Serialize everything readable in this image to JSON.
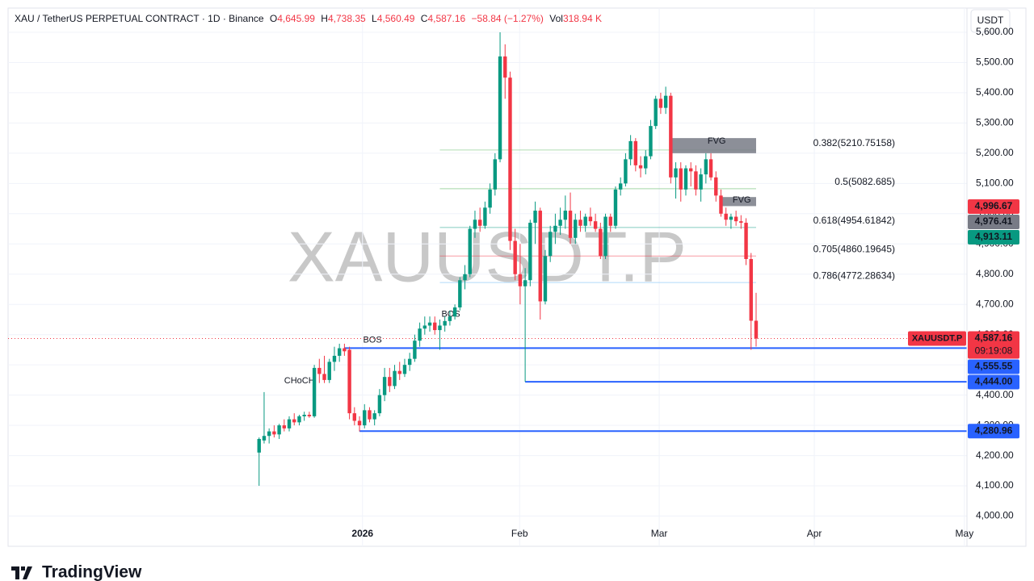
{
  "header": {
    "symbol": "XAU / TetherUS PERPETUAL CONTRACT · 1D · Binance",
    "o_label": "O",
    "o": "4,645.99",
    "h_label": "H",
    "h": "4,738.35",
    "l_label": "L",
    "l": "4,560.49",
    "c_label": "C",
    "c": "4,587.16",
    "change": "−58.84 (−1.27%)",
    "vol_label": "Vol",
    "vol": "318.94 K"
  },
  "currency": "USDT",
  "watermark": "XAUUSDT.P",
  "brand": "TradingView",
  "chart_data": {
    "type": "candlestick",
    "up_color": "#089981",
    "down_color": "#f23645",
    "candles": [
      [
        4210,
        4260,
        4100,
        4255
      ],
      [
        4250,
        4410,
        4240,
        4265
      ],
      [
        4265,
        4290,
        4240,
        4280
      ],
      [
        4280,
        4300,
        4260,
        4270
      ],
      [
        4270,
        4305,
        4255,
        4300
      ],
      [
        4300,
        4320,
        4280,
        4290
      ],
      [
        4290,
        4330,
        4280,
        4320
      ],
      [
        4320,
        4340,
        4300,
        4310
      ],
      [
        4310,
        4335,
        4300,
        4330
      ],
      [
        4330,
        4345,
        4315,
        4335
      ],
      [
        4335,
        4345,
        4325,
        4330
      ],
      [
        4330,
        4500,
        4325,
        4490
      ],
      [
        4490,
        4520,
        4440,
        4470
      ],
      [
        4470,
        4530,
        4440,
        4450
      ],
      [
        4450,
        4520,
        4440,
        4510
      ],
      [
        4510,
        4560,
        4480,
        4530
      ],
      [
        4530,
        4570,
        4510,
        4555
      ],
      [
        4555,
        4570,
        4530,
        4545
      ],
      [
        4550,
        4560,
        4320,
        4340
      ],
      [
        4340,
        4360,
        4300,
        4315
      ],
      [
        4315,
        4330,
        4280,
        4300
      ],
      [
        4300,
        4370,
        4290,
        4350
      ],
      [
        4350,
        4360,
        4310,
        4320
      ],
      [
        4320,
        4350,
        4300,
        4340
      ],
      [
        4340,
        4420,
        4330,
        4400
      ],
      [
        4400,
        4490,
        4380,
        4460
      ],
      [
        4460,
        4490,
        4410,
        4430
      ],
      [
        4430,
        4500,
        4420,
        4480
      ],
      [
        4480,
        4510,
        4450,
        4470
      ],
      [
        4470,
        4520,
        4460,
        4500
      ],
      [
        4500,
        4540,
        4480,
        4520
      ],
      [
        4520,
        4600,
        4510,
        4580
      ],
      [
        4580,
        4640,
        4560,
        4620
      ],
      [
        4620,
        4660,
        4600,
        4630
      ],
      [
        4630,
        4660,
        4610,
        4640
      ],
      [
        4640,
        4660,
        4600,
        4615
      ],
      [
        4615,
        4650,
        4550,
        4630
      ],
      [
        4630,
        4660,
        4610,
        4645
      ],
      [
        4645,
        4680,
        4630,
        4660
      ],
      [
        4660,
        4700,
        4650,
        4690
      ],
      [
        4690,
        4790,
        4680,
        4780
      ],
      [
        4780,
        4830,
        4750,
        4800
      ],
      [
        4800,
        4960,
        4790,
        4950
      ],
      [
        4950,
        5010,
        4920,
        4980
      ],
      [
        4980,
        5020,
        4940,
        4960
      ],
      [
        4960,
        5040,
        4950,
        5020
      ],
      [
        5020,
        5100,
        5000,
        5080
      ],
      [
        5080,
        5200,
        5060,
        5180
      ],
      [
        5180,
        5600,
        5170,
        5520
      ],
      [
        5520,
        5560,
        5380,
        5450
      ],
      [
        5450,
        5470,
        4880,
        4910
      ],
      [
        4910,
        4950,
        4780,
        4800
      ],
      [
        4800,
        4900,
        4700,
        4760
      ],
      [
        4760,
        4820,
        4444,
        4780
      ],
      [
        4780,
        4980,
        4760,
        4970
      ],
      [
        4970,
        5040,
        4900,
        5010
      ],
      [
        5010,
        5020,
        4650,
        4710
      ],
      [
        4710,
        4880,
        4700,
        4860
      ],
      [
        4860,
        4960,
        4840,
        4940
      ],
      [
        4940,
        5000,
        4900,
        4960
      ],
      [
        4960,
        5020,
        4930,
        4980
      ],
      [
        4980,
        5060,
        4950,
        5010
      ],
      [
        5010,
        5070,
        4900,
        4920
      ],
      [
        4920,
        5000,
        4900,
        4980
      ],
      [
        4980,
        5010,
        4940,
        4960
      ],
      [
        4960,
        5000,
        4940,
        4990
      ],
      [
        4990,
        5020,
        4960,
        4975
      ],
      [
        4975,
        5000,
        4940,
        4950
      ],
      [
        4950,
        4970,
        4850,
        4860
      ],
      [
        4860,
        5000,
        4850,
        4990
      ],
      [
        4990,
        5000,
        4940,
        4960
      ],
      [
        4960,
        5090,
        4950,
        5080
      ],
      [
        5080,
        5120,
        5060,
        5100
      ],
      [
        5100,
        5200,
        5090,
        5180
      ],
      [
        5180,
        5260,
        5160,
        5240
      ],
      [
        5240,
        5250,
        5140,
        5160
      ],
      [
        5160,
        5190,
        5120,
        5150
      ],
      [
        5150,
        5210,
        5130,
        5190
      ],
      [
        5190,
        5310,
        5180,
        5290
      ],
      [
        5290,
        5390,
        5280,
        5380
      ],
      [
        5380,
        5400,
        5330,
        5350
      ],
      [
        5350,
        5420,
        5330,
        5390
      ],
      [
        5390,
        5400,
        5100,
        5120
      ],
      [
        5120,
        5170,
        5050,
        5150
      ],
      [
        5150,
        5170,
        5040,
        5080
      ],
      [
        5080,
        5160,
        5060,
        5150
      ],
      [
        5150,
        5170,
        5090,
        5140
      ],
      [
        5140,
        5160,
        5060,
        5080
      ],
      [
        5080,
        5150,
        5040,
        5130
      ],
      [
        5130,
        5200,
        5100,
        5180
      ],
      [
        5180,
        5200,
        5110,
        5120
      ],
      [
        5120,
        5140,
        5040,
        5060
      ],
      [
        5060,
        5080,
        4990,
        5000
      ],
      [
        5000,
        5020,
        4960,
        4980
      ],
      [
        4980,
        5000,
        4950,
        4990
      ],
      [
        4990,
        5010,
        4960,
        4975
      ],
      [
        4975,
        4995,
        4950,
        4970
      ],
      [
        4970,
        4985,
        4830,
        4850
      ],
      [
        4850,
        4870,
        4550,
        4646
      ],
      [
        4645.99,
        4738.35,
        4560.49,
        4587.16
      ]
    ],
    "xlim": [
      -50,
      141
    ],
    "xticks": [
      {
        "value": 20.6,
        "label": "2026"
      },
      {
        "value": 51.9,
        "label": "Feb"
      },
      {
        "value": 79.7,
        "label": "Mar"
      },
      {
        "value": 110.6,
        "label": "Apr"
      },
      {
        "value": 140.5,
        "label": "May"
      }
    ],
    "ylim": [
      3900,
      5680
    ],
    "yticks": [
      {
        "value": 4000,
        "label": "4,000.00"
      },
      {
        "value": 4100,
        "label": "4,100.00"
      },
      {
        "value": 4200,
        "label": "4,200.00"
      },
      {
        "value": 4300,
        "label": "4,300.00"
      },
      {
        "value": 4400,
        "label": "4,400.00"
      },
      {
        "value": 4500,
        "label": "4,500.00"
      },
      {
        "value": 4600,
        "label": "4,600.00"
      },
      {
        "value": 4700,
        "label": "4,700.00"
      },
      {
        "value": 4800,
        "label": "4,800.00"
      },
      {
        "value": 4900,
        "label": "4,900.00"
      },
      {
        "value": 5000,
        "label": "5,000.00"
      },
      {
        "value": 5100,
        "label": "5,100.00"
      },
      {
        "value": 5200,
        "label": "5,200.00"
      },
      {
        "value": 5300,
        "label": "5,300.00"
      },
      {
        "value": 5400,
        "label": "5,400.00"
      },
      {
        "value": 5500,
        "label": "5,500.00"
      },
      {
        "value": 5600,
        "label": "5,600.00"
      }
    ],
    "grid": true,
    "fib_levels": [
      {
        "label": "0.382(5210.75158)",
        "value": 5210.75158,
        "color": "#66bb6a"
      },
      {
        "label": "0.5(5082.685)",
        "value": 5082.685,
        "color": "#4caf50"
      },
      {
        "label": "0.618(4954.61842)",
        "value": 4954.61842,
        "color": "#089981"
      },
      {
        "label": "0.705(4860.19645)",
        "value": 4860.19645,
        "color": "#f23645"
      },
      {
        "label": "0.786(4772.28634)",
        "value": 4772.28634,
        "color": "#64b5f6"
      }
    ],
    "fvg_zones": [
      {
        "label": "FVG",
        "top": 5250,
        "bottom": 5200
      },
      {
        "label": "FVG",
        "top": 5055,
        "bottom": 5025
      }
    ],
    "annotations": [
      {
        "label": "BOS",
        "value": 4640,
        "color": "#b2b5be"
      },
      {
        "label": "BOS",
        "value": 4555.55,
        "color": "#b2b5be"
      },
      {
        "label": "CHoCH",
        "value": 4420,
        "color": "#f5e342"
      }
    ],
    "support_lines": [
      {
        "value": 4555.55,
        "label": "4,555.55",
        "color": "#2962ff"
      },
      {
        "value": 4444,
        "label": "4,444.00",
        "color": "#2962ff"
      },
      {
        "value": 4280.96,
        "label": "4,280.96",
        "color": "#2962ff"
      }
    ],
    "price_tags": [
      {
        "value": 4996.67,
        "label": "4,996.67",
        "color": "#f23645"
      },
      {
        "value": 4976.41,
        "label": "4,976.41",
        "color": "#787b86"
      },
      {
        "value": 4913.11,
        "label": "4,913.11",
        "color": "#089981"
      }
    ],
    "last_price": {
      "symbol": "XAUUSDT.P",
      "value": 4587.16,
      "label": "4,587.16",
      "countdown": "09:19:08",
      "color": "#f23645"
    }
  }
}
